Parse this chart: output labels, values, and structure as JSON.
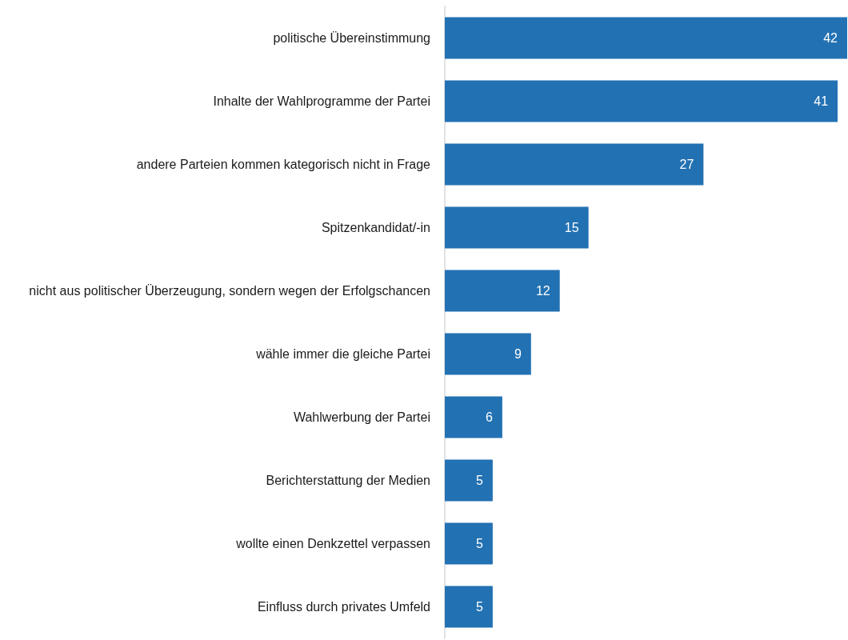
{
  "chart_data": {
    "type": "bar",
    "orientation": "horizontal",
    "categories": [
      "politische Übereinstimmung",
      "Inhalte der Wahlprogramme der Partei",
      "andere Parteien kommen kategorisch nicht in Frage",
      "Spitzenkandidat/-in",
      "nicht aus politischer Überzeugung, sondern wegen der Erfolgschancen",
      "wähle immer die gleiche Partei",
      "Wahlwerbung der Partei",
      "Berichterstattung der Medien",
      "wollte einen Denkzettel verpassen",
      "Einfluss durch privates Umfeld"
    ],
    "values": [
      42,
      41,
      27,
      15,
      12,
      9,
      6,
      5,
      5,
      5
    ],
    "color": "#2271b3",
    "data_labels": true
  }
}
